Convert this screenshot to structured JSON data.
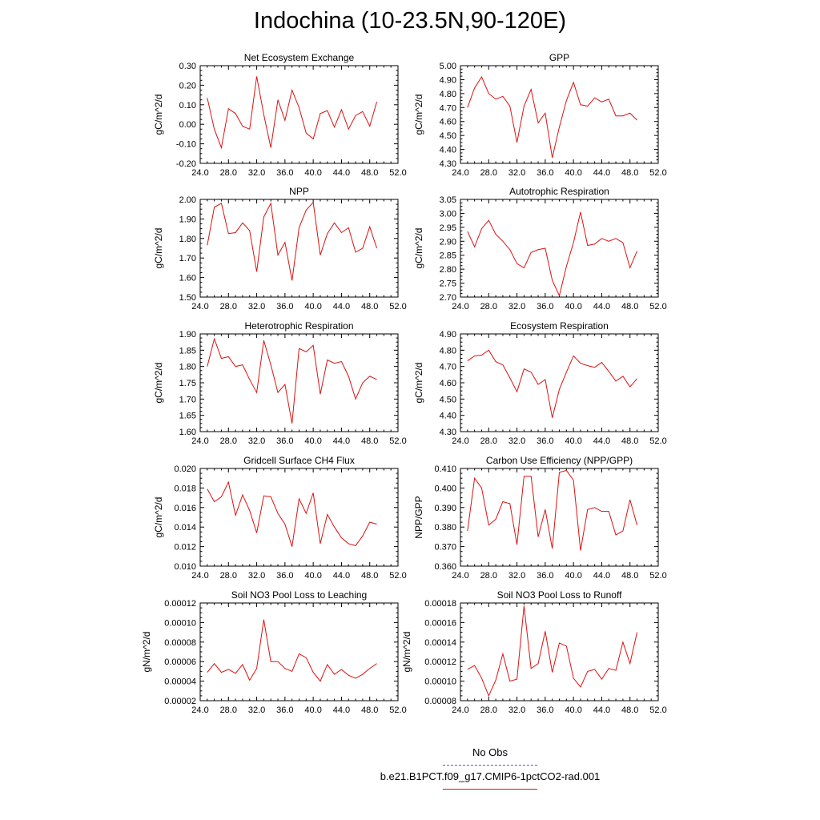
{
  "figure": {
    "title": "Indochina (10-23.5N,90-120E)",
    "legend": [
      {
        "label": "No Obs",
        "color": "#5555dd",
        "style": "dashed"
      },
      {
        "label": "b.e21.B1PCT.f09_g17.CMIP6-1pctCO2-rad.001",
        "color": "#dd1111",
        "style": "solid"
      }
    ]
  },
  "chart_data": [
    {
      "type": "line",
      "title": "Net Ecosystem Exchange",
      "xlabel": "",
      "ylabel": "gC/m^2/d",
      "xlim": [
        24,
        52
      ],
      "ylim": [
        -0.2,
        0.3
      ],
      "xticks": [
        "24.0",
        "28.0",
        "32.0",
        "36.0",
        "40.0",
        "44.0",
        "48.0",
        "52.0"
      ],
      "yticks": [
        "-0.20",
        "-0.10",
        "0.00",
        "0.10",
        "0.20",
        "0.30"
      ],
      "series": [
        {
          "color": "#dd1111",
          "x": [
            25,
            26,
            27,
            28,
            29,
            30,
            31,
            32,
            33,
            34,
            35,
            36,
            37,
            38,
            39,
            40,
            41,
            42,
            43,
            44,
            45,
            46,
            47,
            48,
            49
          ],
          "y": [
            0.135,
            -0.025,
            -0.12,
            0.08,
            0.055,
            -0.01,
            -0.025,
            0.245,
            0.05,
            -0.12,
            0.125,
            0.02,
            0.175,
            0.085,
            -0.045,
            -0.075,
            0.055,
            0.07,
            -0.015,
            0.075,
            -0.025,
            0.045,
            0.065,
            -0.01,
            0.115
          ]
        }
      ]
    },
    {
      "type": "line",
      "title": "GPP",
      "xlabel": "",
      "ylabel": "gC/m^2/d",
      "xlim": [
        24,
        52
      ],
      "ylim": [
        4.3,
        5.0
      ],
      "xticks": [
        "24.0",
        "28.0",
        "32.0",
        "36.0",
        "40.0",
        "44.0",
        "48.0",
        "52.0"
      ],
      "yticks": [
        "4.30",
        "4.40",
        "4.50",
        "4.60",
        "4.70",
        "4.80",
        "4.90",
        "5.00"
      ],
      "series": [
        {
          "color": "#dd1111",
          "x": [
            25,
            26,
            27,
            28,
            29,
            30,
            31,
            32,
            33,
            34,
            35,
            36,
            37,
            38,
            39,
            40,
            41,
            42,
            43,
            44,
            45,
            46,
            47,
            48,
            49
          ],
          "y": [
            4.7,
            4.84,
            4.92,
            4.8,
            4.76,
            4.78,
            4.71,
            4.45,
            4.71,
            4.83,
            4.59,
            4.66,
            4.34,
            4.56,
            4.75,
            4.88,
            4.72,
            4.71,
            4.77,
            4.74,
            4.76,
            4.64,
            4.64,
            4.66,
            4.61
          ]
        }
      ]
    },
    {
      "type": "line",
      "title": "NPP",
      "xlabel": "",
      "ylabel": "gC/m^2/d",
      "xlim": [
        24,
        52
      ],
      "ylim": [
        1.5,
        2.0
      ],
      "xticks": [
        "24.0",
        "28.0",
        "32.0",
        "36.0",
        "40.0",
        "44.0",
        "48.0",
        "52.0"
      ],
      "yticks": [
        "1.50",
        "1.60",
        "1.70",
        "1.80",
        "1.90",
        "2.00"
      ],
      "series": [
        {
          "color": "#dd1111",
          "x": [
            25,
            26,
            27,
            28,
            29,
            30,
            31,
            32,
            33,
            34,
            35,
            36,
            37,
            38,
            39,
            40,
            41,
            42,
            43,
            44,
            45,
            46,
            47,
            48,
            49
          ],
          "y": [
            1.765,
            1.96,
            1.98,
            1.825,
            1.83,
            1.88,
            1.84,
            1.63,
            1.91,
            1.98,
            1.715,
            1.78,
            1.585,
            1.855,
            1.945,
            1.985,
            1.715,
            1.825,
            1.88,
            1.83,
            1.855,
            1.73,
            1.75,
            1.86,
            1.75
          ]
        }
      ]
    },
    {
      "type": "line",
      "title": "Autotrophic Respiration",
      "xlabel": "",
      "ylabel": "gC/m^2/d",
      "xlim": [
        24,
        52
      ],
      "ylim": [
        2.7,
        3.05
      ],
      "xticks": [
        "24.0",
        "28.0",
        "32.0",
        "36.0",
        "40.0",
        "44.0",
        "48.0",
        "52.0"
      ],
      "yticks": [
        "2.70",
        "2.75",
        "2.80",
        "2.85",
        "2.90",
        "2.95",
        "3.00",
        "3.05"
      ],
      "series": [
        {
          "color": "#dd1111",
          "x": [
            25,
            26,
            27,
            28,
            29,
            30,
            31,
            32,
            33,
            34,
            35,
            36,
            37,
            38,
            39,
            40,
            41,
            42,
            43,
            44,
            45,
            46,
            47,
            48,
            49
          ],
          "y": [
            2.935,
            2.88,
            2.945,
            2.975,
            2.925,
            2.9,
            2.87,
            2.82,
            2.805,
            2.86,
            2.87,
            2.875,
            2.76,
            2.705,
            2.81,
            2.895,
            3.005,
            2.885,
            2.89,
            2.91,
            2.9,
            2.91,
            2.895,
            2.805,
            2.865
          ]
        }
      ]
    },
    {
      "type": "line",
      "title": "Heterotrophic Respiration",
      "xlabel": "",
      "ylabel": "gC/m^2/d",
      "xlim": [
        24,
        52
      ],
      "ylim": [
        1.6,
        1.9
      ],
      "xticks": [
        "24.0",
        "28.0",
        "32.0",
        "36.0",
        "40.0",
        "44.0",
        "48.0",
        "52.0"
      ],
      "yticks": [
        "1.60",
        "1.65",
        "1.70",
        "1.75",
        "1.80",
        "1.85",
        "1.90"
      ],
      "series": [
        {
          "color": "#dd1111",
          "x": [
            25,
            26,
            27,
            28,
            29,
            30,
            31,
            32,
            33,
            34,
            35,
            36,
            37,
            38,
            39,
            40,
            41,
            42,
            43,
            44,
            45,
            46,
            47,
            48,
            49
          ],
          "y": [
            1.8,
            1.885,
            1.825,
            1.83,
            1.8,
            1.805,
            1.76,
            1.72,
            1.88,
            1.805,
            1.72,
            1.745,
            1.625,
            1.855,
            1.845,
            1.865,
            1.715,
            1.82,
            1.81,
            1.815,
            1.77,
            1.7,
            1.75,
            1.77,
            1.76
          ]
        }
      ]
    },
    {
      "type": "line",
      "title": "Ecosystem Respiration",
      "xlabel": "",
      "ylabel": "gC/m^2/d",
      "xlim": [
        24,
        52
      ],
      "ylim": [
        4.3,
        4.9
      ],
      "xticks": [
        "24.0",
        "28.0",
        "32.0",
        "36.0",
        "40.0",
        "44.0",
        "48.0",
        "52.0"
      ],
      "yticks": [
        "4.30",
        "4.40",
        "4.50",
        "4.60",
        "4.70",
        "4.80",
        "4.90"
      ],
      "series": [
        {
          "color": "#dd1111",
          "x": [
            25,
            26,
            27,
            28,
            29,
            30,
            31,
            32,
            33,
            34,
            35,
            36,
            37,
            38,
            39,
            40,
            41,
            42,
            43,
            44,
            45,
            46,
            47,
            48,
            49
          ],
          "y": [
            4.735,
            4.765,
            4.77,
            4.8,
            4.73,
            4.71,
            4.63,
            4.545,
            4.685,
            4.665,
            4.59,
            4.62,
            4.385,
            4.56,
            4.665,
            4.765,
            4.72,
            4.705,
            4.695,
            4.725,
            4.67,
            4.61,
            4.64,
            4.575,
            4.625
          ]
        }
      ]
    },
    {
      "type": "line",
      "title": "Gridcell Surface CH4 Flux",
      "xlabel": "",
      "ylabel": "gC/m^2/d",
      "xlim": [
        24,
        52
      ],
      "ylim": [
        0.01,
        0.02
      ],
      "xticks": [
        "24.0",
        "28.0",
        "32.0",
        "36.0",
        "40.0",
        "44.0",
        "48.0",
        "52.0"
      ],
      "yticks": [
        "0.010",
        "0.012",
        "0.014",
        "0.016",
        "0.018",
        "0.020"
      ],
      "series": [
        {
          "color": "#dd1111",
          "x": [
            25,
            26,
            27,
            28,
            29,
            30,
            31,
            32,
            33,
            34,
            35,
            36,
            37,
            38,
            39,
            40,
            41,
            42,
            43,
            44,
            45,
            46,
            47,
            48,
            49
          ],
          "y": [
            0.0179,
            0.0166,
            0.0171,
            0.0186,
            0.0152,
            0.0173,
            0.0157,
            0.0134,
            0.0172,
            0.0171,
            0.0154,
            0.0143,
            0.012,
            0.0169,
            0.0154,
            0.0175,
            0.0123,
            0.0153,
            0.014,
            0.0129,
            0.0123,
            0.0121,
            0.0131,
            0.0145,
            0.0143
          ]
        }
      ]
    },
    {
      "type": "line",
      "title": "Carbon Use Efficiency (NPP/GPP)",
      "xlabel": "",
      "ylabel": "NPP/GPP",
      "xlim": [
        24,
        52
      ],
      "ylim": [
        0.36,
        0.41
      ],
      "xticks": [
        "24.0",
        "28.0",
        "32.0",
        "36.0",
        "40.0",
        "44.0",
        "48.0",
        "52.0"
      ],
      "yticks": [
        "0.360",
        "0.370",
        "0.380",
        "0.390",
        "0.400",
        "0.410"
      ],
      "series": [
        {
          "color": "#dd1111",
          "x": [
            25,
            26,
            27,
            28,
            29,
            30,
            31,
            32,
            33,
            34,
            35,
            36,
            37,
            38,
            39,
            40,
            41,
            42,
            43,
            44,
            45,
            46,
            47,
            48,
            49
          ],
          "y": [
            0.378,
            0.405,
            0.4,
            0.381,
            0.384,
            0.393,
            0.392,
            0.371,
            0.406,
            0.406,
            0.375,
            0.389,
            0.369,
            0.408,
            0.409,
            0.404,
            0.368,
            0.389,
            0.39,
            0.388,
            0.388,
            0.376,
            0.378,
            0.394,
            0.381
          ]
        }
      ]
    },
    {
      "type": "line",
      "title": "Soil NO3 Pool Loss to Leaching",
      "xlabel": "",
      "ylabel": "gN/m^2/d",
      "xlim": [
        24,
        52
      ],
      "ylim": [
        2e-05,
        0.00012
      ],
      "xticks": [
        "24.0",
        "28.0",
        "32.0",
        "36.0",
        "40.0",
        "44.0",
        "48.0",
        "52.0"
      ],
      "yticks": [
        "0.00002",
        "0.00004",
        "0.00006",
        "0.00008",
        "0.00010",
        "0.00012"
      ],
      "series": [
        {
          "color": "#dd1111",
          "x": [
            25,
            26,
            27,
            28,
            29,
            30,
            31,
            32,
            33,
            34,
            35,
            36,
            37,
            38,
            39,
            40,
            41,
            42,
            43,
            44,
            45,
            46,
            47,
            48,
            49
          ],
          "y": [
            4.9e-05,
            5.8e-05,
            4.9e-05,
            5.2e-05,
            4.8e-05,
            5.7e-05,
            4.1e-05,
            5.3e-05,
            0.000103,
            6e-05,
            6e-05,
            5.3e-05,
            5e-05,
            6.8e-05,
            6.4e-05,
            4.9e-05,
            4e-05,
            5.7e-05,
            4.7e-05,
            5.2e-05,
            4.6e-05,
            4.3e-05,
            4.7e-05,
            5.3e-05,
            5.8e-05
          ]
        }
      ]
    },
    {
      "type": "line",
      "title": "Soil NO3 Pool Loss to Runoff",
      "xlabel": "",
      "ylabel": "gN/m^2/d",
      "xlim": [
        24,
        52
      ],
      "ylim": [
        8e-05,
        0.00018
      ],
      "xticks": [
        "24.0",
        "28.0",
        "32.0",
        "36.0",
        "40.0",
        "44.0",
        "48.0",
        "52.0"
      ],
      "yticks": [
        "0.00008",
        "0.00010",
        "0.00012",
        "0.00014",
        "0.00016",
        "0.00018"
      ],
      "series": [
        {
          "color": "#dd1111",
          "x": [
            25,
            26,
            27,
            28,
            29,
            30,
            31,
            32,
            33,
            34,
            35,
            36,
            37,
            38,
            39,
            40,
            41,
            42,
            43,
            44,
            45,
            46,
            47,
            48,
            49
          ],
          "y": [
            0.000112,
            0.000116,
            0.000103,
            8.5e-05,
            0.000101,
            0.000128,
            0.0001,
            0.000102,
            0.000177,
            0.000113,
            0.000118,
            0.000151,
            0.000109,
            0.000139,
            0.000136,
            0.000103,
            9.4e-05,
            0.00011,
            0.000112,
            0.000102,
            0.000113,
            0.000111,
            0.00014,
            0.000118,
            0.00015
          ]
        }
      ]
    }
  ]
}
